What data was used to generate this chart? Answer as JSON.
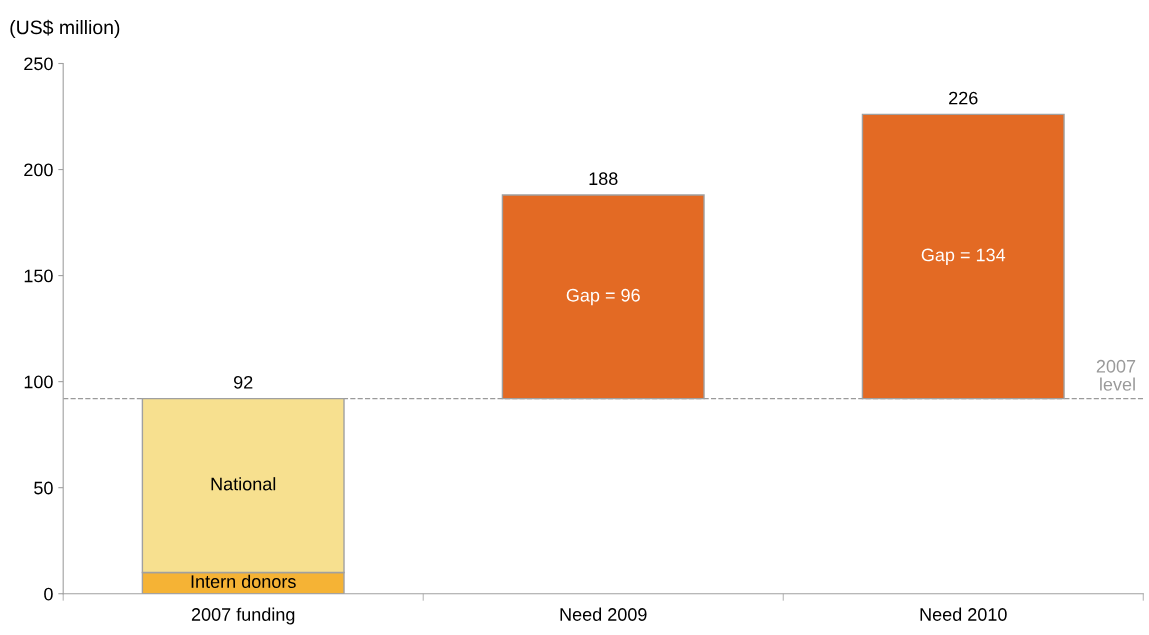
{
  "chart_data": {
    "type": "bar",
    "stacked": true,
    "ylabel": "(US$ million)",
    "categories": [
      "2007 funding",
      "Need 2009",
      "Need 2010"
    ],
    "series": [
      {
        "name": "Intern donors",
        "color": "#f5b335",
        "values": [
          10,
          null,
          null
        ]
      },
      {
        "name": "National",
        "color": "#f7e08f",
        "values": [
          82,
          null,
          null
        ]
      },
      {
        "color": "#e36a24",
        "values": [
          null,
          96,
          134
        ],
        "base": [
          null,
          92,
          92
        ],
        "value_labels": [
          null,
          "Gap = 96",
          "Gap = 134"
        ]
      }
    ],
    "annotations": [
      {
        "text": "92",
        "x": "2007 funding",
        "y": 92
      },
      {
        "text": "188",
        "x": "Need 2009",
        "y": 188
      },
      {
        "text": "226",
        "x": "Need 2010",
        "y": 226
      }
    ],
    "ref_lines": [
      {
        "axis": "y",
        "value": 92,
        "label": "2007\nlevel",
        "color": "#9a9a9a",
        "line_style": "dashed"
      }
    ],
    "ylim": [
      0,
      250
    ],
    "yticks": [
      0,
      50,
      100,
      150,
      200,
      250
    ],
    "grid": false,
    "legend": false
  }
}
